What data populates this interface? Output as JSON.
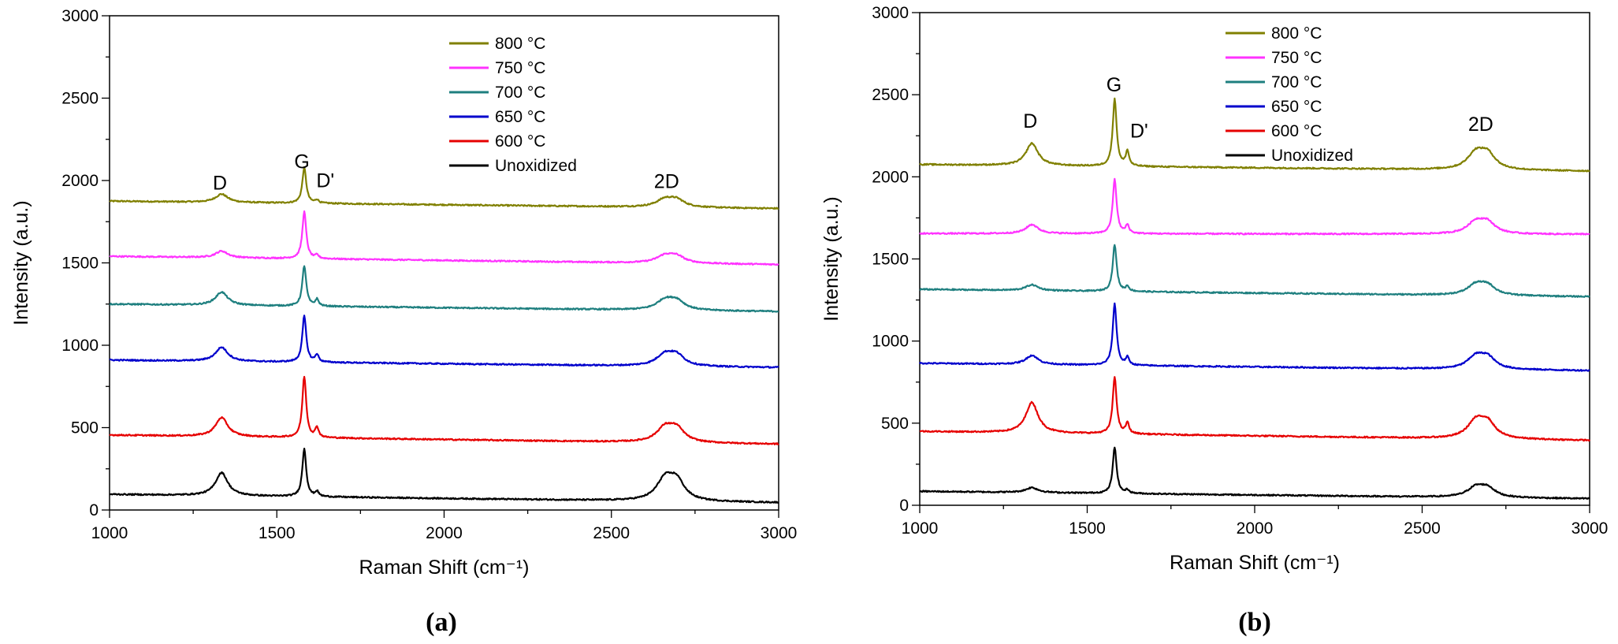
{
  "chart_data": [
    {
      "type": "line",
      "panel_label": "(a)",
      "xlabel": "Raman Shift (cm⁻¹)",
      "ylabel": "Intensity (a.u.)",
      "xlim": [
        1000,
        3000
      ],
      "ylim": [
        0,
        3000
      ],
      "xticks": [
        1000,
        1500,
        2000,
        2500,
        3000
      ],
      "yticks": [
        0,
        500,
        1000,
        1500,
        2000,
        2500,
        3000
      ],
      "legend_position": "top-center",
      "annotations": [
        {
          "text": "D",
          "x": 1330,
          "y": 1945
        },
        {
          "text": "G",
          "x": 1575,
          "y": 2075
        },
        {
          "text": "D'",
          "x": 1645,
          "y": 1960
        },
        {
          "text": "2D",
          "x": 2665,
          "y": 1955
        }
      ],
      "series": [
        {
          "name": "800 °C",
          "color": "#808000",
          "baseline_start": 1875,
          "baseline_end": 1830,
          "D": 50,
          "G": 215,
          "Dp": 20,
          "TwoD": 75
        },
        {
          "name": "750 °C",
          "color": "#ff33ff",
          "baseline_start": 1540,
          "baseline_end": 1490,
          "D": 40,
          "G": 285,
          "Dp": 20,
          "TwoD": 70
        },
        {
          "name": "700 °C",
          "color": "#1e7f7f",
          "baseline_start": 1250,
          "baseline_end": 1205,
          "D": 80,
          "G": 245,
          "Dp": 40,
          "TwoD": 95
        },
        {
          "name": "650 °C",
          "color": "#0000cc",
          "baseline_start": 910,
          "baseline_end": 865,
          "D": 85,
          "G": 280,
          "Dp": 45,
          "TwoD": 110
        },
        {
          "name": "600 °C",
          "color": "#e60000",
          "baseline_start": 455,
          "baseline_end": 400,
          "D": 115,
          "G": 370,
          "Dp": 60,
          "TwoD": 140
        },
        {
          "name": "Unoxidized",
          "color": "#000000",
          "baseline_start": 95,
          "baseline_end": 45,
          "D": 140,
          "G": 290,
          "Dp": 30,
          "TwoD": 205
        }
      ]
    },
    {
      "type": "line",
      "panel_label": "(b)",
      "xlabel": "Raman Shift (cm⁻¹)",
      "ylabel": "Intensity (a.u.)",
      "xlim": [
        1000,
        3000
      ],
      "ylim": [
        0,
        3000
      ],
      "xticks": [
        1000,
        1500,
        2000,
        2500,
        3000
      ],
      "yticks": [
        0,
        500,
        1000,
        1500,
        2000,
        2500,
        3000
      ],
      "legend_position": "top-center",
      "annotations": [
        {
          "text": "D",
          "x": 1330,
          "y": 2300
        },
        {
          "text": "G",
          "x": 1580,
          "y": 2520
        },
        {
          "text": "D'",
          "x": 1655,
          "y": 2240
        },
        {
          "text": "2D",
          "x": 2675,
          "y": 2280
        }
      ],
      "series": [
        {
          "name": "800 °C",
          "color": "#808000",
          "baseline_start": 2075,
          "baseline_end": 2035,
          "D": 135,
          "G": 410,
          "Dp": 90,
          "TwoD": 160
        },
        {
          "name": "750 °C",
          "color": "#ff33ff",
          "baseline_start": 1655,
          "baseline_end": 1650,
          "D": 55,
          "G": 330,
          "Dp": 50,
          "TwoD": 115
        },
        {
          "name": "700 °C",
          "color": "#1e7f7f",
          "baseline_start": 1315,
          "baseline_end": 1270,
          "D": 35,
          "G": 285,
          "Dp": 30,
          "TwoD": 100
        },
        {
          "name": "650 °C",
          "color": "#0000cc",
          "baseline_start": 865,
          "baseline_end": 820,
          "D": 55,
          "G": 375,
          "Dp": 45,
          "TwoD": 120
        },
        {
          "name": "600 °C",
          "color": "#e60000",
          "baseline_start": 450,
          "baseline_end": 395,
          "D": 185,
          "G": 345,
          "Dp": 65,
          "TwoD": 165
        },
        {
          "name": "Unoxidized",
          "color": "#000000",
          "baseline_start": 85,
          "baseline_end": 40,
          "D": 30,
          "G": 280,
          "Dp": 20,
          "TwoD": 95
        }
      ]
    }
  ]
}
